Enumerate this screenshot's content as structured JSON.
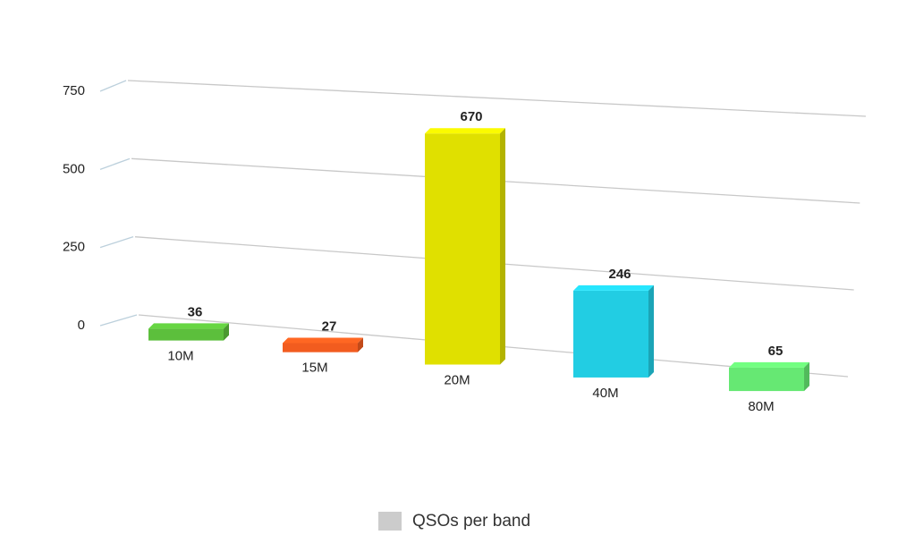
{
  "chart_data": {
    "type": "bar3d",
    "categories": [
      "10M",
      "15M",
      "20M",
      "40M",
      "80M"
    ],
    "series": [
      {
        "name": "QSOs per band",
        "color": "#cccccc",
        "values": [
          36,
          27,
          670,
          246,
          65
        ],
        "colors": [
          "#5cbf3c",
          "#f25c1f",
          "#e0e000",
          "#22cde3",
          "#66e873"
        ]
      }
    ],
    "ylim": [
      0,
      750
    ],
    "yticks": [
      0,
      250,
      500,
      750
    ],
    "grid": true,
    "legend": "bottom"
  }
}
